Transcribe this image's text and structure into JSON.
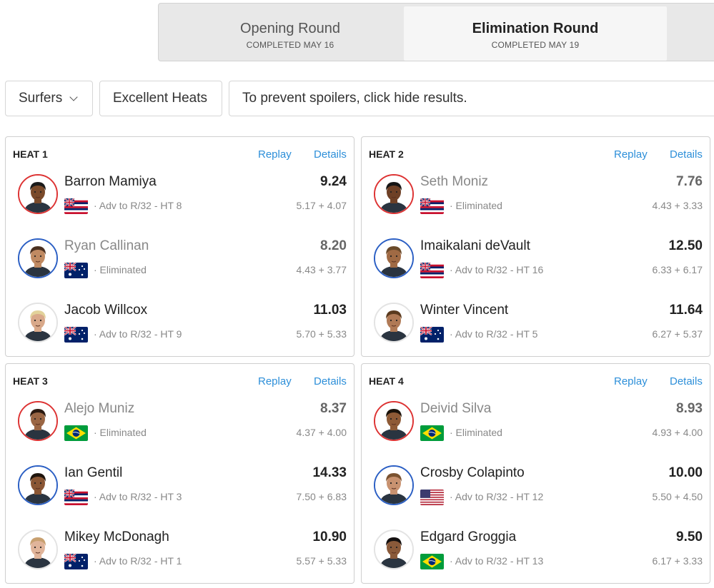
{
  "rounds": [
    {
      "name": "Opening Round",
      "sub": "COMPLETED MAY 16",
      "active": false
    },
    {
      "name": "Elimination Round",
      "sub": "COMPLETED MAY 19",
      "active": true
    }
  ],
  "filters": {
    "surfers_label": "Surfers",
    "heats_label": "Excellent Heats",
    "spoiler_text": "To prevent spoilers, click hide results."
  },
  "links": {
    "replay": "Replay",
    "details": "Details"
  },
  "heats": [
    {
      "title": "HEAT 1",
      "surfers": [
        {
          "name": "Barron Mamiya",
          "score": "9.24",
          "flag": "hawaii",
          "status": "· Adv to R/32 - HT 8",
          "waves": "5.17 + 4.07",
          "ring": "red",
          "eliminated": false,
          "skin": "#7a4a2a",
          "hair": "#1a1a1a"
        },
        {
          "name": "Ryan Callinan",
          "score": "8.20",
          "flag": "australia",
          "status": "· Eliminated",
          "waves": "4.43 + 3.77",
          "ring": "blue",
          "eliminated": true,
          "skin": "#c08a62",
          "hair": "#4a3020"
        },
        {
          "name": "Jacob Willcox",
          "score": "11.03",
          "flag": "australia",
          "status": "· Adv to R/32 - HT 9",
          "waves": "5.70 + 5.33",
          "ring": "white",
          "eliminated": false,
          "skin": "#d9a98a",
          "hair": "#e2d29a"
        }
      ]
    },
    {
      "title": "HEAT 2",
      "surfers": [
        {
          "name": "Seth Moniz",
          "score": "7.76",
          "flag": "hawaii",
          "status": "· Eliminated",
          "waves": "4.43 + 3.33",
          "ring": "red",
          "eliminated": true,
          "skin": "#6e4026",
          "hair": "#151515"
        },
        {
          "name": "Imaikalani deVault",
          "score": "12.50",
          "flag": "hawaii",
          "status": "· Adv to R/32 - HT 16",
          "waves": "6.33 + 6.17",
          "ring": "blue",
          "eliminated": false,
          "skin": "#a06a44",
          "hair": "#6a4a2a"
        },
        {
          "name": "Winter Vincent",
          "score": "11.64",
          "flag": "australia",
          "status": "· Adv to R/32 - HT 5",
          "waves": "6.27 + 5.37",
          "ring": "white",
          "eliminated": false,
          "skin": "#b07a56",
          "hair": "#5a3a1e"
        }
      ]
    },
    {
      "title": "HEAT 3",
      "surfers": [
        {
          "name": "Alejo Muniz",
          "score": "8.37",
          "flag": "brazil",
          "status": "· Eliminated",
          "waves": "4.37 + 4.00",
          "ring": "red",
          "eliminated": true,
          "skin": "#9a6644",
          "hair": "#2a1a10"
        },
        {
          "name": "Ian Gentil",
          "score": "14.33",
          "flag": "hawaii",
          "status": "· Adv to R/32 - HT 3",
          "waves": "7.50 + 6.83",
          "ring": "blue",
          "eliminated": false,
          "skin": "#8a5634",
          "hair": "#1e140c"
        },
        {
          "name": "Mikey McDonagh",
          "score": "10.90",
          "flag": "australia",
          "status": "· Adv to R/32 - HT 1",
          "waves": "5.57 + 5.33",
          "ring": "white",
          "eliminated": false,
          "skin": "#e0b49a",
          "hair": "#c8a070"
        }
      ]
    },
    {
      "title": "HEAT 4",
      "surfers": [
        {
          "name": "Deivid Silva",
          "score": "8.93",
          "flag": "brazil",
          "status": "· Eliminated",
          "waves": "4.93 + 4.00",
          "ring": "red",
          "eliminated": true,
          "skin": "#8e5a36",
          "hair": "#1a120a"
        },
        {
          "name": "Crosby Colapinto",
          "score": "10.00",
          "flag": "usa",
          "status": "· Adv to R/32 - HT 12",
          "waves": "5.50 + 4.50",
          "ring": "blue",
          "eliminated": false,
          "skin": "#c89270",
          "hair": "#7a5230"
        },
        {
          "name": "Edgard Groggia",
          "score": "9.50",
          "flag": "brazil",
          "status": "· Adv to R/32 - HT 13",
          "waves": "6.17 + 3.33",
          "ring": "white",
          "eliminated": false,
          "skin": "#8a5a3a",
          "hair": "#141010"
        }
      ]
    }
  ],
  "colors": {
    "link": "#2d8fd9",
    "ring_red": "#d33",
    "ring_blue": "#2b5fc4"
  }
}
